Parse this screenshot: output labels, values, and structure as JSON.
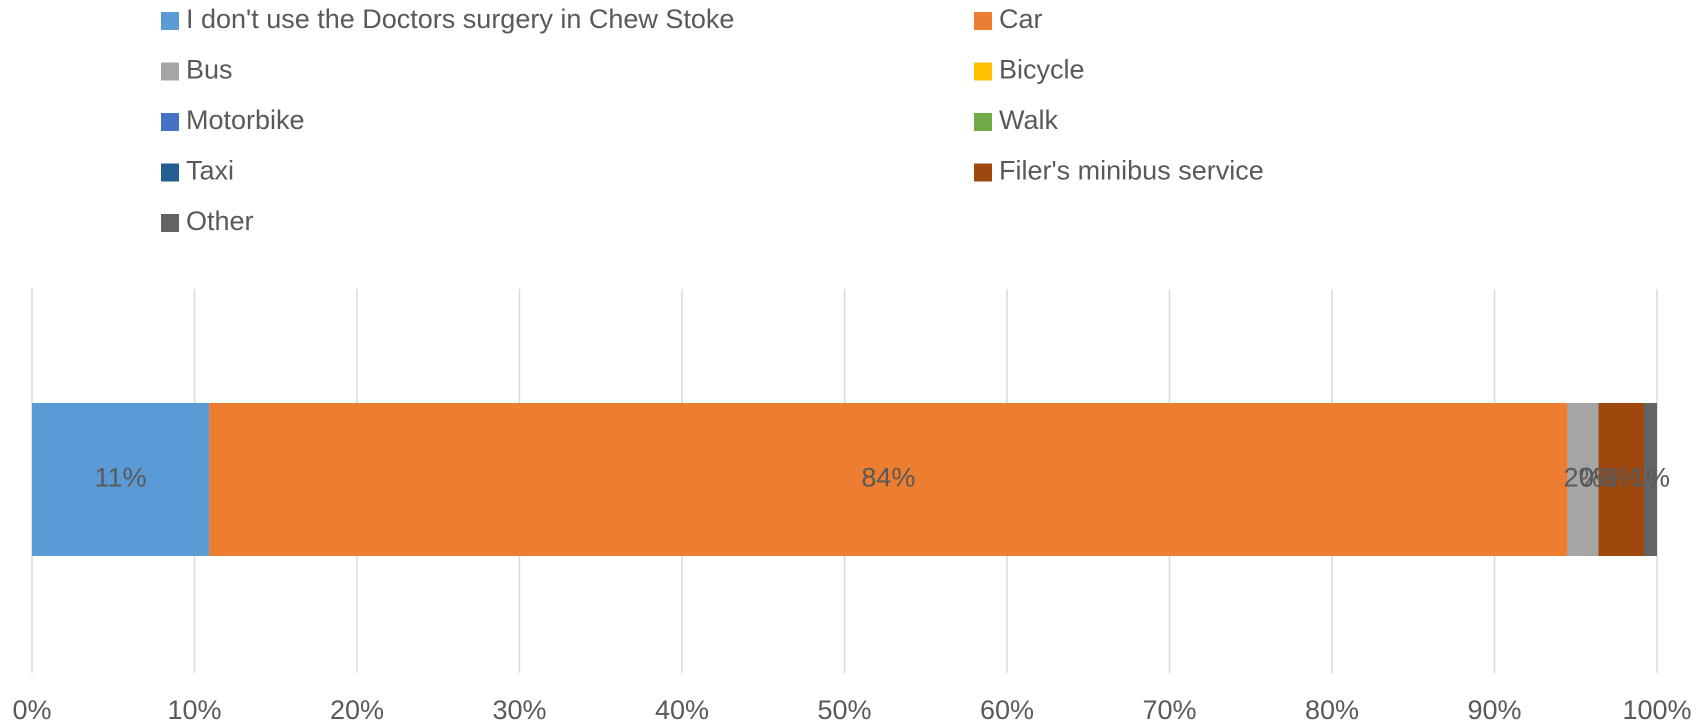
{
  "chart_data": {
    "type": "stacked-bar-horizontal",
    "categories": [
      null
    ],
    "series": [
      {
        "name": "I don't use the Doctors surgery in Chew Stoke",
        "color": "#5b9bd5",
        "values": [
          10.9
        ],
        "value_labels": [
          "11%"
        ]
      },
      {
        "name": "Car",
        "color": "#ed7d31",
        "values": [
          83.6
        ],
        "value_labels": [
          "84%"
        ]
      },
      {
        "name": "Bus",
        "color": "#a5a5a5",
        "values": [
          1.9
        ],
        "value_labels": [
          "2%"
        ]
      },
      {
        "name": "Bicycle",
        "color": "#ffc000",
        "values": [
          0
        ],
        "value_labels": [
          "0%"
        ]
      },
      {
        "name": "Motorbike",
        "color": "#4472c4",
        "values": [
          0
        ],
        "value_labels": [
          "0%"
        ]
      },
      {
        "name": "Walk",
        "color": "#70ad47",
        "values": [
          0
        ],
        "value_labels": [
          "0%"
        ]
      },
      {
        "name": "Taxi",
        "color": "#255e91",
        "values": [
          0
        ],
        "value_labels": [
          "0%"
        ]
      },
      {
        "name": "Filer's minibus service",
        "color": "#9e480e",
        "values": [
          2.8
        ],
        "value_labels": [
          "3%"
        ]
      },
      {
        "name": "Other",
        "color": "#636363",
        "values": [
          0.8
        ],
        "value_labels": [
          "1%"
        ]
      }
    ],
    "xlim": [
      0,
      100
    ],
    "xticks": [
      {
        "value": 0,
        "label": "0%"
      },
      {
        "value": 10,
        "label": "10%"
      },
      {
        "value": 20,
        "label": "20%"
      },
      {
        "value": 30,
        "label": "30%"
      },
      {
        "value": 40,
        "label": "40%"
      },
      {
        "value": 50,
        "label": "50%"
      },
      {
        "value": 60,
        "label": "60%"
      },
      {
        "value": 70,
        "label": "70%"
      },
      {
        "value": 80,
        "label": "80%"
      },
      {
        "value": 90,
        "label": "90%"
      },
      {
        "value": 100,
        "label": "100%"
      }
    ],
    "grid": true,
    "legend": "top"
  }
}
